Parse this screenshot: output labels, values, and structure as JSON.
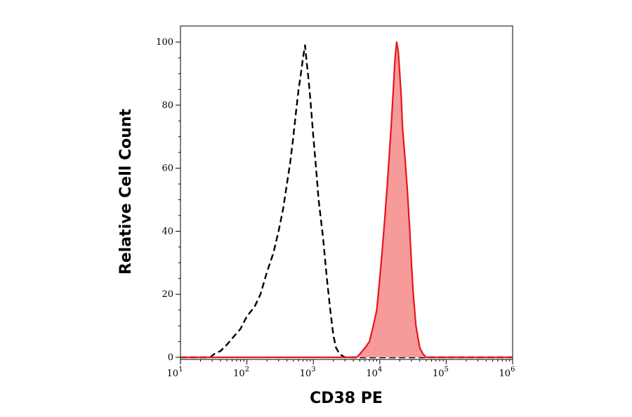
{
  "chart_data": {
    "type": "area",
    "title": "",
    "xlabel": "CD38 PE",
    "ylabel": "Relative Cell Count",
    "x_scale": "log",
    "xlim": [
      10,
      1000000
    ],
    "ylim": [
      0,
      100
    ],
    "grid": false,
    "legend": "none",
    "x_ticks": [
      {
        "value": 10,
        "base": "10",
        "exp": "1"
      },
      {
        "value": 100,
        "base": "10",
        "exp": "2"
      },
      {
        "value": 1000,
        "base": "10",
        "exp": "3"
      },
      {
        "value": 10000,
        "base": "10",
        "exp": "4"
      },
      {
        "value": 100000,
        "base": "10",
        "exp": "5"
      },
      {
        "value": 1000000,
        "base": "10",
        "exp": "6"
      }
    ],
    "y_ticks": [
      {
        "value": 0,
        "label": "0"
      },
      {
        "value": 20,
        "label": "20"
      },
      {
        "value": 40,
        "label": "40"
      },
      {
        "value": 60,
        "label": "60"
      },
      {
        "value": 80,
        "label": "80"
      },
      {
        "value": 100,
        "label": "100"
      }
    ],
    "series": [
      {
        "style": "dashed",
        "color": "#000000",
        "fill": "none",
        "x": [
          10,
          28,
          32,
          40,
          50,
          60,
          80,
          100,
          130,
          160,
          200,
          250,
          300,
          350,
          400,
          450,
          500,
          550,
          600,
          650,
          700,
          750,
          800,
          850,
          900,
          1000,
          1100,
          1200,
          1400,
          1600,
          1800,
          2000,
          2200,
          2500,
          3000,
          1000000
        ],
        "y": [
          0,
          0,
          1,
          2,
          4,
          6,
          9,
          13,
          16,
          20,
          27,
          33,
          40,
          47,
          55,
          62,
          70,
          78,
          85,
          90,
          95,
          99,
          93,
          88,
          82,
          70,
          60,
          50,
          38,
          25,
          15,
          7,
          3,
          1,
          0,
          0
        ]
      },
      {
        "style": "solid",
        "color": "#e8141b",
        "fill": "#f79a9a",
        "x": [
          10,
          4500,
          5000,
          6000,
          7000,
          8000,
          9000,
          10000,
          11000,
          12000,
          13000,
          14000,
          15000,
          16000,
          17000,
          18000,
          19000,
          20000,
          21000,
          22000,
          24000,
          26000,
          28000,
          30000,
          32000,
          35000,
          40000,
          45000,
          50000,
          1000000
        ],
        "y": [
          0,
          0,
          1,
          3,
          5,
          10,
          15,
          25,
          35,
          45,
          55,
          65,
          75,
          85,
          95,
          100,
          97,
          90,
          83,
          73,
          63,
          53,
          42,
          30,
          20,
          10,
          3,
          1,
          0,
          0
        ]
      }
    ]
  }
}
